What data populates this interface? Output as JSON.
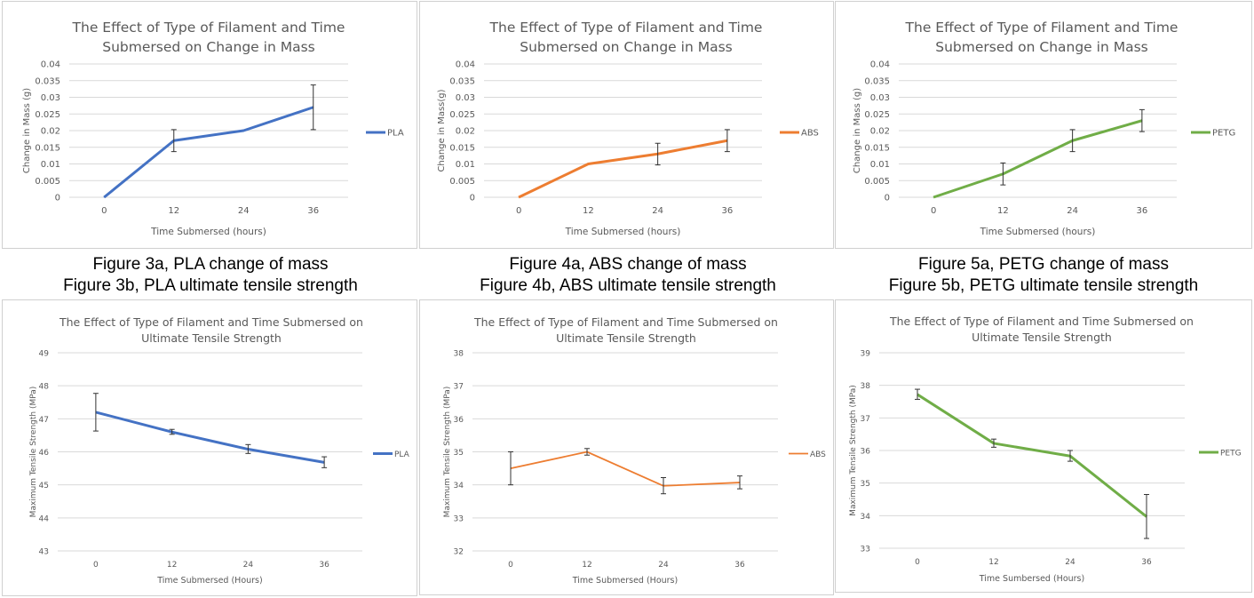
{
  "captions": [
    {
      "a": "Figure 3a, PLA change of mass",
      "b": "Figure 3b, PLA ultimate tensile strength"
    },
    {
      "a": "Figure 4a, ABS change of mass",
      "b": "Figure 4b, ABS ultimate tensile strength"
    },
    {
      "a": "Figure 5a, PETG change of mass",
      "b": "Figure 5b, PETG ultimate tensile strength"
    }
  ],
  "chart_data": [
    {
      "type": "line",
      "title": "The Effect of Type of Filament and Time Submersed on Change in Mass",
      "title_lines": [
        "The Effect of Type of Filament and Time",
        "Submersed on Change in Mass"
      ],
      "xlabel": "Time Submersed (hours)",
      "ylabel": "Change in Mass (g)",
      "categories": [
        "0",
        "12",
        "24",
        "36"
      ],
      "ylim": [
        0,
        0.04
      ],
      "yticks": [
        "0",
        "0.005",
        "0.01",
        "0.015",
        "0.02",
        "0.025",
        "0.03",
        "0.035",
        "0.04"
      ],
      "grid": true,
      "legend": "right",
      "series": [
        {
          "name": "PLA",
          "color": "#4472C4",
          "values": [
            0,
            0.017,
            0.02,
            0.027
          ],
          "error_low": [
            null,
            0.0137,
            null,
            0.0203
          ],
          "error_high": [
            null,
            0.0203,
            null,
            0.0337
          ]
        }
      ]
    },
    {
      "type": "line",
      "title": "The Effect of Type of Filament and Time Submersed on Change in Mass",
      "title_lines": [
        "The Effect of Type of Filament and Time",
        "Submersed on Change in Mass"
      ],
      "xlabel": "Time Submersed (hours)",
      "ylabel": "Change in Mass(g)",
      "categories": [
        "0",
        "12",
        "24",
        "36"
      ],
      "ylim": [
        0,
        0.04
      ],
      "yticks": [
        "0",
        "0.005",
        "0.01",
        "0.015",
        "0.02",
        "0.025",
        "0.03",
        "0.035",
        "0.04"
      ],
      "grid": true,
      "legend": "right",
      "series": [
        {
          "name": "ABS",
          "color": "#ED7D31",
          "values": [
            0,
            0.01,
            0.013,
            0.017
          ],
          "error_low": [
            null,
            null,
            0.0097,
            0.0137
          ],
          "error_high": [
            null,
            null,
            0.0162,
            0.0203
          ]
        }
      ]
    },
    {
      "type": "line",
      "title": "The Effect of Type of Filament and Time Submersed on Change in Mass",
      "title_lines": [
        "The Effect of Type of Filament and Time",
        "Submersed on Change in Mass"
      ],
      "xlabel": "Time Submersed (hours)",
      "ylabel": "Change in Mass (g)",
      "categories": [
        "0",
        "12",
        "24",
        "36"
      ],
      "ylim": [
        0,
        0.04
      ],
      "yticks": [
        "0",
        "0.005",
        "0.01",
        "0.015",
        "0.02",
        "0.025",
        "0.03",
        "0.035",
        "0.04"
      ],
      "grid": true,
      "legend": "right",
      "series": [
        {
          "name": "PETG",
          "color": "#70AD47",
          "values": [
            0,
            0.007,
            0.017,
            0.023
          ],
          "error_low": [
            null,
            0.0037,
            0.0137,
            0.0197
          ],
          "error_high": [
            null,
            0.0103,
            0.0203,
            0.0263
          ]
        }
      ]
    },
    {
      "type": "line",
      "title": "The Effect of Type of Filament and Time Submersed on Ultimate Tensile Strength",
      "title_lines": [
        "The Effect of Type of Filament and Time Submersed on",
        "Ultimate Tensile Strength"
      ],
      "xlabel": "Time Submersed (Hours)",
      "ylabel": "Maximum Tensile Strength (MPa)",
      "categories": [
        "0",
        "12",
        "24",
        "36"
      ],
      "ylim": [
        43,
        49
      ],
      "yticks": [
        "43",
        "44",
        "45",
        "46",
        "47",
        "48",
        "49"
      ],
      "grid": true,
      "legend": "right",
      "series": [
        {
          "name": "PLA",
          "color": "#4472C4",
          "values": [
            47.2,
            46.6,
            46.08,
            45.68
          ],
          "error_low": [
            46.63,
            46.53,
            45.95,
            45.52
          ],
          "error_high": [
            47.77,
            46.68,
            46.22,
            45.85
          ]
        }
      ]
    },
    {
      "type": "line",
      "title": "The Effect of Type of Filament and Time Submersed on Ultimate Tensile Strength",
      "title_lines": [
        "The Effect of Type of Filament and Time Submersed on",
        "Ultimate Tensile Strength"
      ],
      "xlabel": "Time Submersed (Hours)",
      "ylabel": "Maximum Tensile Strength (MPa)",
      "categories": [
        "0",
        "12",
        "24",
        "36"
      ],
      "ylim": [
        32,
        38
      ],
      "yticks": [
        "32",
        "33",
        "34",
        "35",
        "36",
        "37",
        "38"
      ],
      "grid": true,
      "legend": "right",
      "series": [
        {
          "name": "ABS",
          "color": "#ED7D31",
          "values": [
            34.5,
            35.0,
            33.97,
            34.07
          ],
          "error_low": [
            34.0,
            34.9,
            33.73,
            33.88
          ],
          "error_high": [
            35.0,
            35.1,
            34.22,
            34.27
          ]
        }
      ]
    },
    {
      "type": "line",
      "title": "The Effect of Type of Filament and Time Submersed on Ultimate Tensile Strength",
      "title_lines": [
        "The Effect of Type of Filament and Time Submersed on",
        "Ultimate Tensile Strength"
      ],
      "xlabel": "Time Sumbersed (Hours)",
      "ylabel": "Maximum Tensile Strength (MPa)",
      "categories": [
        "0",
        "12",
        "24",
        "36"
      ],
      "ylim": [
        33,
        39
      ],
      "yticks": [
        "33",
        "34",
        "35",
        "36",
        "37",
        "38",
        "39"
      ],
      "grid": true,
      "legend": "right",
      "series": [
        {
          "name": "PETG",
          "color": "#70AD47",
          "values": [
            37.72,
            36.22,
            35.83,
            33.97
          ],
          "error_low": [
            37.57,
            36.1,
            35.67,
            33.3
          ],
          "error_high": [
            37.88,
            36.35,
            36.0,
            34.65
          ]
        }
      ]
    }
  ]
}
